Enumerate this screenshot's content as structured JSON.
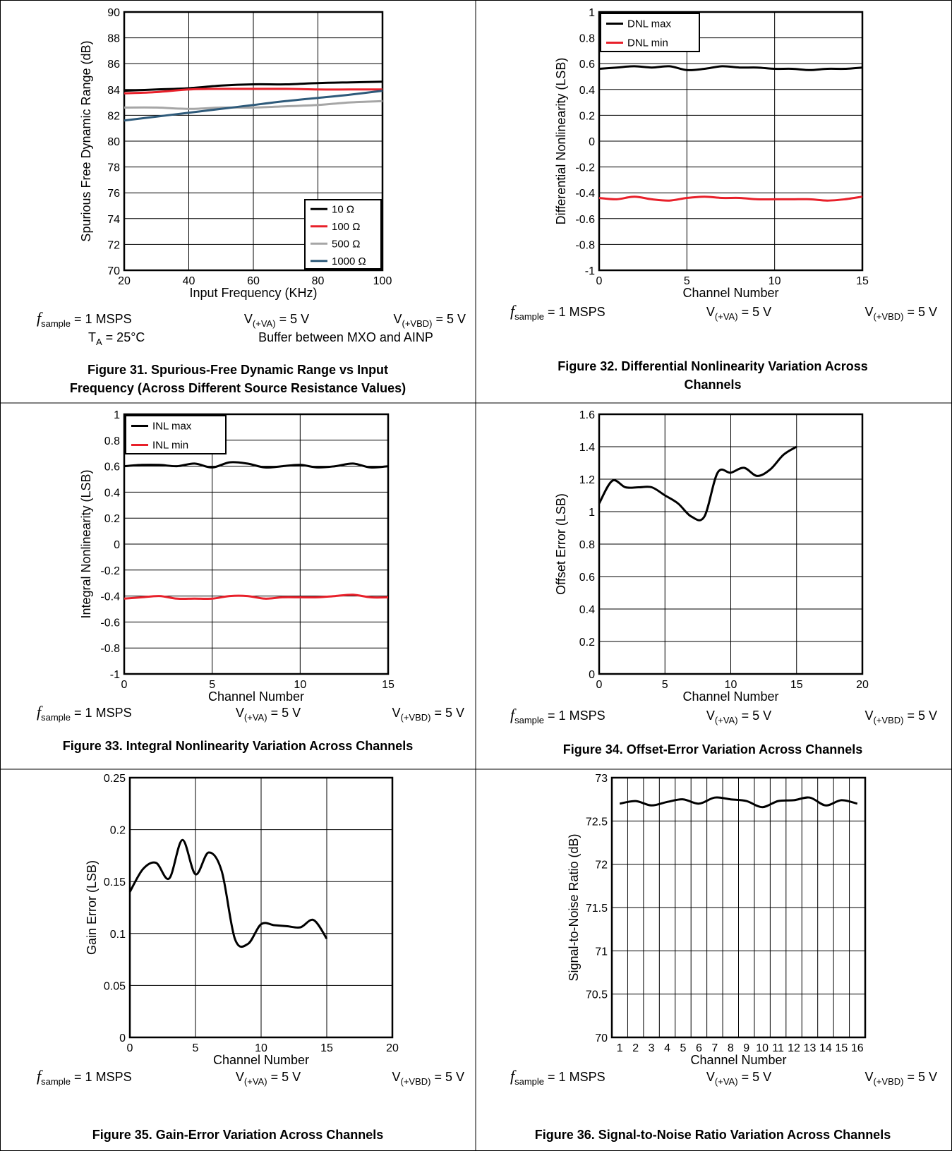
{
  "panels": [
    {
      "chart_data": {
        "type": "line",
        "xlabel": "Input Frequency (KHz)",
        "ylabel": "Spurious Free Dynamic Range (dB)",
        "xlim": [
          20,
          100
        ],
        "ylim": [
          70,
          90
        ],
        "xticks": [
          "20",
          "40",
          "60",
          "80",
          "100"
        ],
        "yticks": [
          "70",
          "72",
          "74",
          "76",
          "78",
          "80",
          "82",
          "84",
          "86",
          "88",
          "90"
        ],
        "grid": true,
        "legend_position": "bottom-right",
        "series": [
          {
            "name": "10 Ω",
            "color": "#000000",
            "x": [
              20,
              30,
              40,
              50,
              60,
              70,
              80,
              90,
              100
            ],
            "y": [
              83.9,
              84.0,
              84.1,
              84.3,
              84.4,
              84.4,
              84.5,
              84.55,
              84.6
            ]
          },
          {
            "name": "100 Ω",
            "color": "#e8202a",
            "x": [
              20,
              30,
              40,
              50,
              60,
              70,
              80,
              90,
              100
            ],
            "y": [
              83.7,
              83.8,
              84.0,
              84.05,
              84.05,
              84.05,
              84.0,
              84.0,
              84.0
            ]
          },
          {
            "name": "500 Ω",
            "color": "#a6a6a6",
            "x": [
              20,
              30,
              40,
              50,
              60,
              70,
              80,
              90,
              100
            ],
            "y": [
              82.6,
              82.6,
              82.5,
              82.6,
              82.6,
              82.7,
              82.8,
              83.0,
              83.1
            ]
          },
          {
            "name": "1000 Ω",
            "color": "#2e5a7a",
            "x": [
              20,
              30,
              40,
              50,
              60,
              70,
              80,
              90,
              100
            ],
            "y": [
              81.6,
              81.9,
              82.2,
              82.5,
              82.8,
              83.1,
              83.35,
              83.6,
              83.9
            ]
          }
        ]
      },
      "conditions": [
        {
          "pre": "",
          "italic": "f",
          "sub": "sample",
          "post": " = 1 MSPS"
        },
        {
          "pre": "V",
          "italic": "",
          "sub": "(+VA)",
          "post": " = 5 V"
        },
        {
          "pre": "V",
          "italic": "",
          "sub": "(+VBD)",
          "post": " = 5 V"
        },
        {
          "pre": "T",
          "italic": "",
          "sub": "A",
          "post": " = 25°C"
        },
        {
          "pre": "Buffer between MXO and AINP",
          "italic": "",
          "sub": "",
          "post": ""
        }
      ],
      "caption": [
        "Figure 31. Spurious-Free Dynamic Range vs Input",
        "Frequency (Across Different Source Resistance Values)"
      ]
    },
    {
      "chart_data": {
        "type": "line",
        "xlabel": "Channel Number",
        "ylabel": "Differential Nonlinearity (LSB)",
        "xlim": [
          0,
          15
        ],
        "ylim": [
          -1,
          1
        ],
        "xticks": [
          "0",
          "5",
          "10",
          "15"
        ],
        "yticks": [
          "-1",
          "-0.8",
          "-0.6",
          "-0.4",
          "-0.2",
          "0",
          "0.2",
          "0.4",
          "0.6",
          "0.8",
          "1"
        ],
        "grid": true,
        "legend_position": "top-left",
        "series": [
          {
            "name": "DNL max",
            "color": "#000000",
            "x": [
              0,
              1,
              2,
              3,
              4,
              5,
              6,
              7,
              8,
              9,
              10,
              11,
              12,
              13,
              14,
              15
            ],
            "y": [
              0.56,
              0.57,
              0.58,
              0.57,
              0.58,
              0.55,
              0.56,
              0.58,
              0.57,
              0.57,
              0.56,
              0.56,
              0.55,
              0.56,
              0.56,
              0.57
            ]
          },
          {
            "name": "DNL min",
            "color": "#e8202a",
            "x": [
              0,
              1,
              2,
              3,
              4,
              5,
              6,
              7,
              8,
              9,
              10,
              11,
              12,
              13,
              14,
              15
            ],
            "y": [
              -0.44,
              -0.45,
              -0.43,
              -0.45,
              -0.46,
              -0.44,
              -0.43,
              -0.44,
              -0.44,
              -0.45,
              -0.45,
              -0.45,
              -0.45,
              -0.46,
              -0.45,
              -0.43
            ]
          }
        ]
      },
      "conditions": [
        {
          "pre": "",
          "italic": "f",
          "sub": "sample",
          "post": " = 1 MSPS"
        },
        {
          "pre": "V",
          "italic": "",
          "sub": "(+VA)",
          "post": " = 5 V"
        },
        {
          "pre": "V",
          "italic": "",
          "sub": "(+VBD)",
          "post": " = 5 V"
        }
      ],
      "caption": [
        "Figure 32. Differential Nonlinearity Variation Across",
        "Channels"
      ]
    },
    {
      "chart_data": {
        "type": "line",
        "xlabel": "Channel Number",
        "ylabel": "Integral Nonlinearity (LSB)",
        "xlim": [
          0,
          15
        ],
        "ylim": [
          -1,
          1
        ],
        "xticks": [
          "0",
          "5",
          "10",
          "15"
        ],
        "yticks": [
          "-1",
          "-0.8",
          "-0.6",
          "-0.4",
          "-0.2",
          "0",
          "0.2",
          "0.4",
          "0.6",
          "0.8",
          "1"
        ],
        "grid": true,
        "legend_position": "top-left",
        "series": [
          {
            "name": "INL max",
            "color": "#000000",
            "x": [
              0,
              1,
              2,
              3,
              4,
              5,
              6,
              7,
              8,
              9,
              10,
              11,
              12,
              13,
              14,
              15
            ],
            "y": [
              0.6,
              0.61,
              0.61,
              0.6,
              0.62,
              0.59,
              0.63,
              0.62,
              0.59,
              0.6,
              0.61,
              0.59,
              0.6,
              0.62,
              0.59,
              0.6
            ]
          },
          {
            "name": "INL min",
            "color": "#e8202a",
            "x": [
              0,
              1,
              2,
              3,
              4,
              5,
              6,
              7,
              8,
              9,
              10,
              11,
              12,
              13,
              14,
              15
            ],
            "y": [
              -0.42,
              -0.41,
              -0.4,
              -0.42,
              -0.42,
              -0.42,
              -0.4,
              -0.4,
              -0.42,
              -0.41,
              -0.41,
              -0.41,
              -0.4,
              -0.39,
              -0.41,
              -0.41
            ]
          }
        ]
      },
      "conditions": [
        {
          "pre": "",
          "italic": "f",
          "sub": "sample",
          "post": " = 1 MSPS"
        },
        {
          "pre": "V",
          "italic": "",
          "sub": "(+VA)",
          "post": " = 5 V"
        },
        {
          "pre": "V",
          "italic": "",
          "sub": "(+VBD)",
          "post": " = 5 V"
        }
      ],
      "caption": [
        "Figure 33. Integral Nonlinearity Variation Across Channels"
      ]
    },
    {
      "chart_data": {
        "type": "line",
        "xlabel": "Channel Number",
        "ylabel": "Offset Error (LSB)",
        "xlim": [
          0,
          20
        ],
        "ylim": [
          0,
          1.6
        ],
        "xticks": [
          "0",
          "5",
          "10",
          "15",
          "20"
        ],
        "yticks": [
          "0",
          "0.2",
          "0.4",
          "0.6",
          "0.8",
          "1",
          "1.2",
          "1.4",
          "1.6"
        ],
        "grid": true,
        "series": [
          {
            "name": "",
            "color": "#000000",
            "x": [
              0,
              1,
              2,
              3,
              4,
              5,
              6,
              7,
              8,
              9,
              10,
              11,
              12,
              13,
              14,
              15
            ],
            "y": [
              1.05,
              1.19,
              1.15,
              1.15,
              1.15,
              1.1,
              1.05,
              0.97,
              0.97,
              1.24,
              1.24,
              1.27,
              1.22,
              1.26,
              1.35,
              1.4
            ]
          }
        ]
      },
      "conditions": [
        {
          "pre": "",
          "italic": "f",
          "sub": "sample",
          "post": " = 1 MSPS"
        },
        {
          "pre": "V",
          "italic": "",
          "sub": "(+VA)",
          "post": " = 5 V"
        },
        {
          "pre": "V",
          "italic": "",
          "sub": "(+VBD)",
          "post": " = 5 V"
        }
      ],
      "caption": [
        "Figure 34. Offset-Error Variation Across Channels"
      ]
    },
    {
      "chart_data": {
        "type": "line",
        "xlabel": "Channel Number",
        "ylabel": "Gain Error (LSB)",
        "xlim": [
          0,
          20
        ],
        "ylim": [
          0,
          0.25
        ],
        "xticks": [
          "0",
          "5",
          "10",
          "15",
          "20"
        ],
        "yticks": [
          "0",
          "0.05",
          "0.1",
          "0.15",
          "0.2",
          "0.25"
        ],
        "grid": true,
        "series": [
          {
            "name": "",
            "color": "#000000",
            "x": [
              0,
              1,
              2,
              3,
              4,
              5,
              6,
              7,
              8,
              9,
              10,
              11,
              12,
              13,
              14,
              15
            ],
            "y": [
              0.14,
              0.162,
              0.168,
              0.153,
              0.19,
              0.157,
              0.178,
              0.16,
              0.095,
              0.09,
              0.109,
              0.108,
              0.107,
              0.106,
              0.113,
              0.095
            ]
          }
        ]
      },
      "conditions": [
        {
          "pre": "",
          "italic": "f",
          "sub": "sample",
          "post": " = 1 MSPS"
        },
        {
          "pre": "V",
          "italic": "",
          "sub": "(+VA)",
          "post": " = 5 V"
        },
        {
          "pre": "V",
          "italic": "",
          "sub": "(+VBD)",
          "post": " = 5 V"
        }
      ],
      "caption": [
        "Figure 35. Gain-Error Variation Across Channels"
      ]
    },
    {
      "chart_data": {
        "type": "line",
        "xlabel": "Channel Number",
        "ylabel": "Signal-to-Noise Ratio (dB)",
        "xlim": [
          0.5,
          16.5
        ],
        "ylim": [
          70,
          73
        ],
        "xticks": [
          "1",
          "2",
          "3",
          "4",
          "5",
          "6",
          "7",
          "8",
          "9",
          "10",
          "11",
          "12",
          "13",
          "14",
          "15",
          "16"
        ],
        "yticks": [
          "70",
          "70.5",
          "71",
          "71.5",
          "72",
          "72.5",
          "73"
        ],
        "grid": true,
        "series": [
          {
            "name": "",
            "color": "#000000",
            "x": [
              1,
              2,
              3,
              4,
              5,
              6,
              7,
              8,
              9,
              10,
              11,
              12,
              13,
              14,
              15,
              16
            ],
            "y": [
              72.7,
              72.73,
              72.68,
              72.72,
              72.75,
              72.7,
              72.77,
              72.75,
              72.73,
              72.66,
              72.73,
              72.74,
              72.77,
              72.68,
              72.74,
              72.7
            ]
          }
        ]
      },
      "conditions": [
        {
          "pre": "",
          "italic": "f",
          "sub": "sample",
          "post": " = 1 MSPS"
        },
        {
          "pre": "V",
          "italic": "",
          "sub": "(+VA)",
          "post": " = 5 V"
        },
        {
          "pre": "V",
          "italic": "",
          "sub": "(+VBD)",
          "post": " = 5 V"
        }
      ],
      "caption": [
        "Figure 36. Signal-to-Noise Ratio Variation Across Channels"
      ]
    }
  ]
}
